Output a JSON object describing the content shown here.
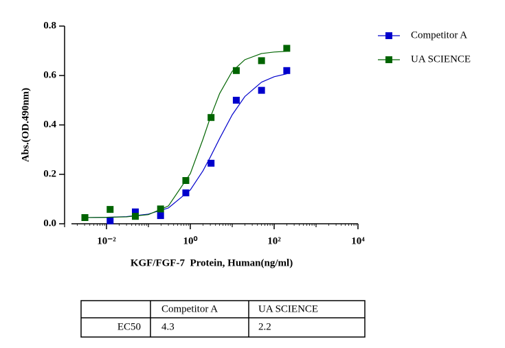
{
  "chart_data": {
    "type": "scatter",
    "xlabel": "KGF/FGF-7  Protein, Human(ng/ml)",
    "ylabel": "Abs.(OD.490nm)",
    "xscale": "log",
    "xlim": [
      0.001,
      10000
    ],
    "xticks": [
      {
        "value": 0.01,
        "label": "10⁻²"
      },
      {
        "value": 1,
        "label": "10⁰"
      },
      {
        "value": 100,
        "label": "10²"
      },
      {
        "value": 10000,
        "label": "10⁴"
      }
    ],
    "xminorticks": [
      0.001,
      0.1,
      10,
      1000
    ],
    "ylim": [
      0,
      0.8
    ],
    "yticks": [
      {
        "value": 0,
        "label": "0.0"
      },
      0.2,
      0.4,
      0.6,
      0.8
    ],
    "legend": "top-right",
    "x": [
      0.00305,
      0.0122,
      0.0488,
      0.195,
      0.781,
      3.125,
      12.5,
      50,
      200
    ],
    "curve_x": [
      0.003,
      0.01,
      0.03,
      0.1,
      0.3,
      1,
      2,
      3,
      5,
      10,
      20,
      50,
      100,
      200
    ],
    "series": [
      {
        "name": "Competitor A",
        "color": "#0000cc",
        "values": [
          0.025,
          0.012,
          0.048,
          0.033,
          0.125,
          0.245,
          0.5,
          0.54,
          0.62
        ],
        "curve": [
          0.025,
          0.026,
          0.029,
          0.039,
          0.064,
          0.137,
          0.214,
          0.27,
          0.345,
          0.441,
          0.515,
          0.573,
          0.595,
          0.607
        ]
      },
      {
        "name": "UA SCIENCE",
        "color": "#006400",
        "values": [
          0.025,
          0.058,
          0.03,
          0.06,
          0.175,
          0.43,
          0.62,
          0.66,
          0.71
        ],
        "curve": [
          0.025,
          0.026,
          0.028,
          0.037,
          0.072,
          0.203,
          0.342,
          0.43,
          0.527,
          0.617,
          0.664,
          0.689,
          0.695,
          0.698
        ]
      }
    ]
  },
  "table": {
    "columns": [
      null,
      "Competitor A",
      "UA SCIENCE"
    ],
    "rows": [
      [
        "EC50",
        4.3,
        2.2
      ]
    ]
  }
}
